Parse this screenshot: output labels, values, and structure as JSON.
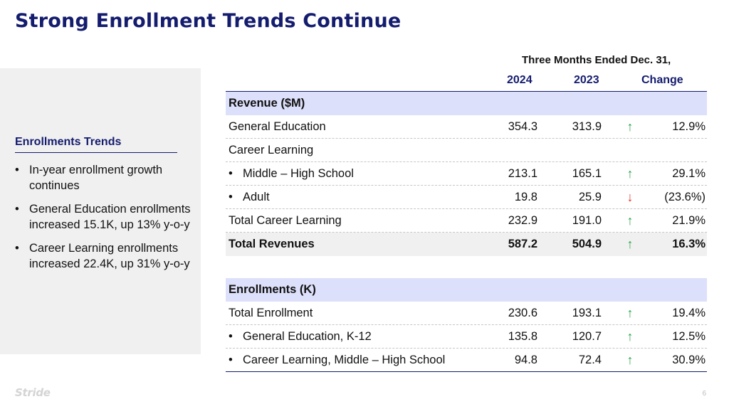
{
  "title": "Strong Enrollment Trends Continue",
  "sidebar": {
    "heading": "Enrollments Trends",
    "bullets": [
      "In-year enrollment growth continues",
      "General Education enrollments increased 15.1K, up 13% y-o-y",
      "Career Learning enrollments increased 22.4K, up 31% y-o-y"
    ]
  },
  "table": {
    "period": "Three Months Ended Dec. 31,",
    "columns": [
      "2024",
      "2023",
      "Change"
    ],
    "rows": [
      {
        "label": "Revenue ($M)",
        "kind": "section"
      },
      {
        "label": "General Education",
        "v2024": "354.3",
        "v2023": "313.9",
        "dir": "up",
        "change": "12.9%"
      },
      {
        "label": "Career Learning"
      },
      {
        "label": "Middle – High School",
        "bullet": "•",
        "v2024": "213.1",
        "v2023": "165.1",
        "dir": "up",
        "change": "29.1%"
      },
      {
        "label": "Adult",
        "bullet": "•",
        "v2024": "19.8",
        "v2023": "25.9",
        "dir": "down",
        "change": "(23.6%)"
      },
      {
        "label": "Total Career Learning",
        "v2024": "232.9",
        "v2023": "191.0",
        "dir": "up",
        "change": "21.9%"
      },
      {
        "label": "Total Revenues",
        "kind": "total",
        "v2024": "587.2",
        "v2023": "504.9",
        "dir": "up",
        "change": "16.3%"
      },
      {
        "label": "Enrollments (K)",
        "kind": "section"
      },
      {
        "label": "Total Enrollment",
        "v2024": "230.6",
        "v2023": "193.1",
        "dir": "up",
        "change": "19.4%"
      },
      {
        "label": "General Education, K-12",
        "bullet": "•",
        "v2024": "135.8",
        "v2023": "120.7",
        "dir": "up",
        "change": "12.5%"
      },
      {
        "label": "Career Learning, Middle – High School",
        "bullet": "•",
        "v2024": "94.8",
        "v2023": "72.4",
        "dir": "up",
        "change": "30.9%"
      }
    ]
  },
  "arrows": {
    "up": "↑",
    "down": "↓"
  },
  "colors": {
    "navy": "#141c6e",
    "section_bg": "#dde0fa",
    "up": "#2aa84a",
    "down": "#e0372b"
  },
  "footer": {
    "logo": "Stride",
    "page": "6"
  }
}
